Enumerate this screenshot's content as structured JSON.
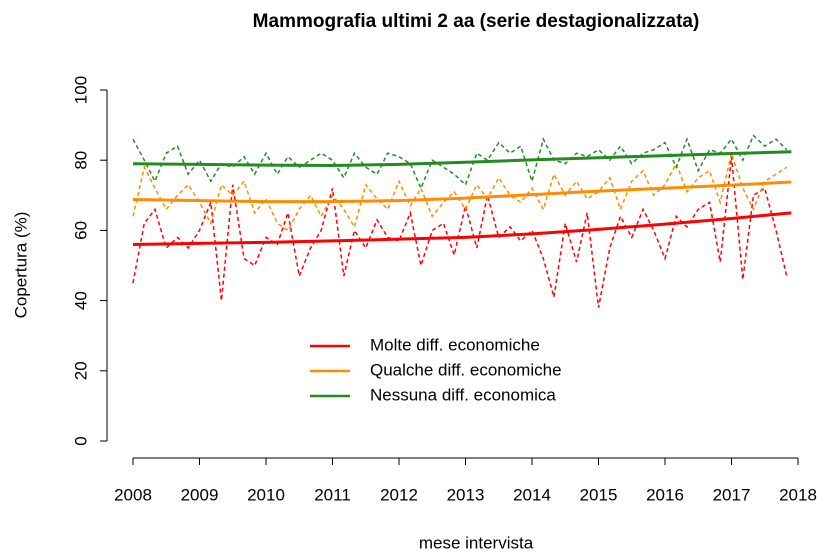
{
  "chart_data": {
    "type": "line",
    "title": "Mammografia ultimi 2 aa (serie destagionalizzata)",
    "x_label": "mese intervista",
    "y_label": "Copertura (%)",
    "x": [
      2008,
      2008.17,
      2008.33,
      2008.5,
      2008.67,
      2008.83,
      2009,
      2009.17,
      2009.33,
      2009.5,
      2009.67,
      2009.83,
      2010,
      2010.17,
      2010.33,
      2010.5,
      2010.67,
      2010.83,
      2011,
      2011.17,
      2011.33,
      2011.5,
      2011.67,
      2011.83,
      2012,
      2012.17,
      2012.33,
      2012.5,
      2012.67,
      2012.83,
      2013,
      2013.17,
      2013.33,
      2013.5,
      2013.67,
      2013.83,
      2014,
      2014.17,
      2014.33,
      2014.5,
      2014.67,
      2014.83,
      2015,
      2015.17,
      2015.33,
      2015.5,
      2015.67,
      2015.83,
      2016,
      2016.17,
      2016.33,
      2016.5,
      2016.67,
      2016.83,
      2017,
      2017.17,
      2017.33,
      2017.5,
      2017.67,
      2017.83
    ],
    "trend_x": [
      2008,
      2009,
      2010,
      2011,
      2012,
      2013,
      2014,
      2015,
      2016,
      2017,
      2017.9
    ],
    "series": [
      {
        "name": "Molte diff. economiche",
        "color": "#ff0000",
        "values": [
          45,
          62,
          66,
          55,
          58,
          55,
          60,
          68,
          40,
          73,
          52,
          50,
          58,
          56,
          65,
          47,
          55,
          60,
          72,
          47,
          60,
          55,
          63,
          58,
          57,
          65,
          50,
          60,
          62,
          53,
          67,
          55,
          70,
          58,
          61,
          57,
          60,
          52,
          41,
          62,
          51,
          65,
          38,
          55,
          64,
          58,
          66,
          60,
          52,
          64,
          61,
          66,
          68,
          51,
          81,
          46,
          70,
          72,
          60,
          47
        ],
        "trend": [
          56,
          56.3,
          56.6,
          57,
          57.5,
          58,
          59,
          60.3,
          61.8,
          63.4,
          65
        ]
      },
      {
        "name": "Qualche diff. economiche",
        "color": "#ff8c00",
        "values": [
          64,
          78,
          72,
          66,
          70,
          73,
          68,
          62,
          73,
          70,
          74,
          65,
          69,
          62,
          60,
          66,
          70,
          64,
          70,
          66,
          61,
          73,
          69,
          66,
          74,
          67,
          72,
          64,
          68,
          71,
          66,
          73,
          69,
          75,
          70,
          68,
          72,
          66,
          76,
          70,
          74,
          69,
          71,
          75,
          66,
          74,
          77,
          70,
          73,
          79,
          71,
          75,
          77,
          68,
          82,
          72,
          66,
          74,
          76,
          78
        ],
        "trend": [
          68.8,
          68.5,
          68.2,
          68.2,
          68.5,
          69.2,
          70.2,
          71.2,
          72,
          72.9,
          73.8
        ]
      },
      {
        "name": "Nessuna diff. economica",
        "color": "#228b22",
        "values": [
          86,
          80,
          74,
          82,
          84,
          76,
          80,
          74,
          79,
          78,
          81,
          76,
          82,
          76,
          81,
          78,
          80,
          82,
          80,
          75,
          82,
          78,
          76,
          82,
          81,
          79,
          72,
          80,
          78,
          76,
          73,
          82,
          80,
          85,
          82,
          84,
          74,
          86,
          80,
          79,
          82,
          81,
          83,
          80,
          84,
          79,
          82,
          83,
          85,
          78,
          86,
          77,
          83,
          82,
          86,
          80,
          87,
          84,
          86,
          83
        ],
        "trend": [
          79,
          78.8,
          78.6,
          78.5,
          78.8,
          79.4,
          80.1,
          80.7,
          81.3,
          81.9,
          82.4
        ]
      }
    ],
    "xlim": [
      2008,
      2018
    ],
    "ylim": [
      0,
      100
    ],
    "xticks": [
      2008,
      2009,
      2010,
      2011,
      2012,
      2013,
      2014,
      2015,
      2016,
      2017,
      2018
    ],
    "yticks": [
      0,
      20,
      40,
      60,
      80,
      100
    ]
  }
}
